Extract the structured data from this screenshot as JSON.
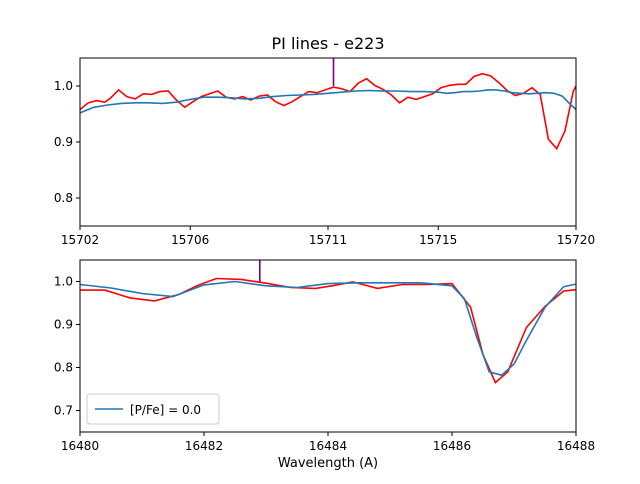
{
  "chart_data": [
    {
      "type": "line",
      "title": "PI lines - e223",
      "xlabel": "",
      "ylabel": "",
      "xlim": [
        15702,
        15720
      ],
      "ylim": [
        0.75,
        1.05
      ],
      "xticks": [
        15702,
        15706,
        15711,
        15715,
        15720
      ],
      "yticks": [
        0.8,
        0.9,
        1.0
      ],
      "xtick_labels": [
        "15702",
        "15706",
        "15711",
        "15715",
        "15720"
      ],
      "ytick_labels": [
        "0.8",
        "0.9",
        "1.0"
      ],
      "marker_line": {
        "x": 15711.2,
        "y_from": 1.0,
        "y_to": 1.05,
        "color": "#800080"
      },
      "series": [
        {
          "color": "#ff0000",
          "x": [
            15702,
            15702.3,
            15702.6,
            15702.9,
            15703.1,
            15703.4,
            15703.7,
            15704.0,
            15704.3,
            15704.6,
            15704.9,
            15705.2,
            15705.5,
            15705.8,
            15706.1,
            15706.4,
            15706.7,
            15707.0,
            15707.3,
            15707.6,
            15707.9,
            15708.2,
            15708.5,
            15708.8,
            15709.1,
            15709.4,
            15709.7,
            15710.0,
            15710.3,
            15710.6,
            15710.9,
            15711.2,
            15711.5,
            15711.8,
            15712.1,
            15712.4,
            15712.7,
            15713.0,
            15713.3,
            15713.6,
            15713.9,
            15714.2,
            15714.5,
            15714.8,
            15715.1,
            15715.4,
            15715.7,
            15716.0,
            15716.3,
            15716.6,
            15716.9,
            15717.2,
            15717.5,
            15717.8,
            15718.1,
            15718.4,
            15718.7,
            15719.0,
            15719.3,
            15719.6,
            15719.9,
            15720.0
          ],
          "y": [
            0.958,
            0.97,
            0.974,
            0.971,
            0.978,
            0.993,
            0.981,
            0.977,
            0.986,
            0.985,
            0.99,
            0.991,
            0.975,
            0.962,
            0.972,
            0.981,
            0.986,
            0.991,
            0.98,
            0.977,
            0.981,
            0.975,
            0.982,
            0.984,
            0.972,
            0.965,
            0.972,
            0.981,
            0.99,
            0.988,
            0.993,
            0.998,
            0.995,
            0.99,
            1.005,
            1.013,
            1.001,
            0.994,
            0.984,
            0.97,
            0.98,
            0.976,
            0.981,
            0.986,
            0.997,
            1.001,
            1.003,
            1.003,
            1.017,
            1.022,
            1.018,
            1.006,
            0.992,
            0.983,
            0.987,
            0.997,
            0.985,
            0.905,
            0.888,
            0.92,
            0.99,
            1.0
          ],
          "note_ignore": ""
        },
        {
          "color": "#1f77b4",
          "x": [
            15702,
            15702.5,
            15703,
            15703.5,
            15704,
            15704.5,
            15705,
            15705.5,
            15706,
            15706.5,
            15707,
            15707.5,
            15708,
            15708.5,
            15709,
            15709.5,
            15710,
            15710.5,
            15711,
            15711.5,
            15712,
            15712.5,
            15713,
            15713.5,
            15714,
            15714.5,
            15715,
            15715.3,
            15715.6,
            15715.9,
            15716.2,
            15716.5,
            15716.8,
            15717.1,
            15717.4,
            15717.7,
            15718,
            15718.3,
            15718.6,
            15718.9,
            15719.2,
            15719.5,
            15719.8,
            15720
          ],
          "y": [
            0.952,
            0.962,
            0.966,
            0.969,
            0.97,
            0.97,
            0.969,
            0.971,
            0.976,
            0.98,
            0.98,
            0.979,
            0.977,
            0.978,
            0.981,
            0.983,
            0.984,
            0.985,
            0.987,
            0.989,
            0.991,
            0.992,
            0.991,
            0.991,
            0.99,
            0.99,
            0.989,
            0.987,
            0.988,
            0.99,
            0.99,
            0.991,
            0.993,
            0.993,
            0.991,
            0.988,
            0.987,
            0.986,
            0.987,
            0.988,
            0.987,
            0.982,
            0.967,
            0.958
          ]
        }
      ]
    },
    {
      "type": "line",
      "title": "",
      "xlabel": "Wavelength (A)",
      "ylabel": "",
      "xlim": [
        16480,
        16488
      ],
      "ylim": [
        0.65,
        1.05
      ],
      "xticks": [
        16480,
        16482,
        16484,
        16486,
        16488
      ],
      "yticks": [
        0.7,
        0.8,
        0.9,
        1.0
      ],
      "xtick_labels": [
        "16480",
        "16482",
        "16484",
        "16486",
        "16488"
      ],
      "ytick_labels": [
        "0.7",
        "0.8",
        "0.9",
        "1.0"
      ],
      "marker_line": {
        "x": 16482.9,
        "y_from": 1.0,
        "y_to": 1.05,
        "color": "#800080"
      },
      "legend": {
        "position": "lower-left",
        "entries": [
          "[P/Fe] = 0.0"
        ]
      },
      "series": [
        {
          "color": "#ff0000",
          "x": [
            16480,
            16480.4,
            16480.8,
            16481.2,
            16481.6,
            16481.9,
            16482.2,
            16482.6,
            16483.0,
            16483.4,
            16483.8,
            16484.1,
            16484.4,
            16484.8,
            16485.2,
            16485.6,
            16486.0,
            16486.3,
            16486.5,
            16486.7,
            16486.9,
            16487.2,
            16487.5,
            16487.8,
            16488
          ],
          "y": [
            0.98,
            0.98,
            0.962,
            0.955,
            0.97,
            0.991,
            1.007,
            1.005,
            0.996,
            0.986,
            0.984,
            0.991,
            0.999,
            0.984,
            0.993,
            0.993,
            0.995,
            0.94,
            0.83,
            0.765,
            0.79,
            0.893,
            0.942,
            0.978,
            0.981
          ]
        },
        {
          "name": "[P/Fe] = 0.0",
          "color": "#1f77b4",
          "x": [
            16480,
            16480.5,
            16481,
            16481.5,
            16482,
            16482.5,
            16483,
            16483.5,
            16484,
            16484.5,
            16485,
            16485.5,
            16486,
            16486.2,
            16486.4,
            16486.6,
            16486.8,
            16487.0,
            16487.2,
            16487.5,
            16487.8,
            16488
          ],
          "y": [
            0.993,
            0.985,
            0.972,
            0.965,
            0.992,
            1.0,
            0.99,
            0.986,
            0.995,
            0.997,
            0.997,
            0.997,
            0.99,
            0.96,
            0.87,
            0.79,
            0.782,
            0.808,
            0.863,
            0.94,
            0.988,
            0.994
          ]
        }
      ]
    }
  ]
}
